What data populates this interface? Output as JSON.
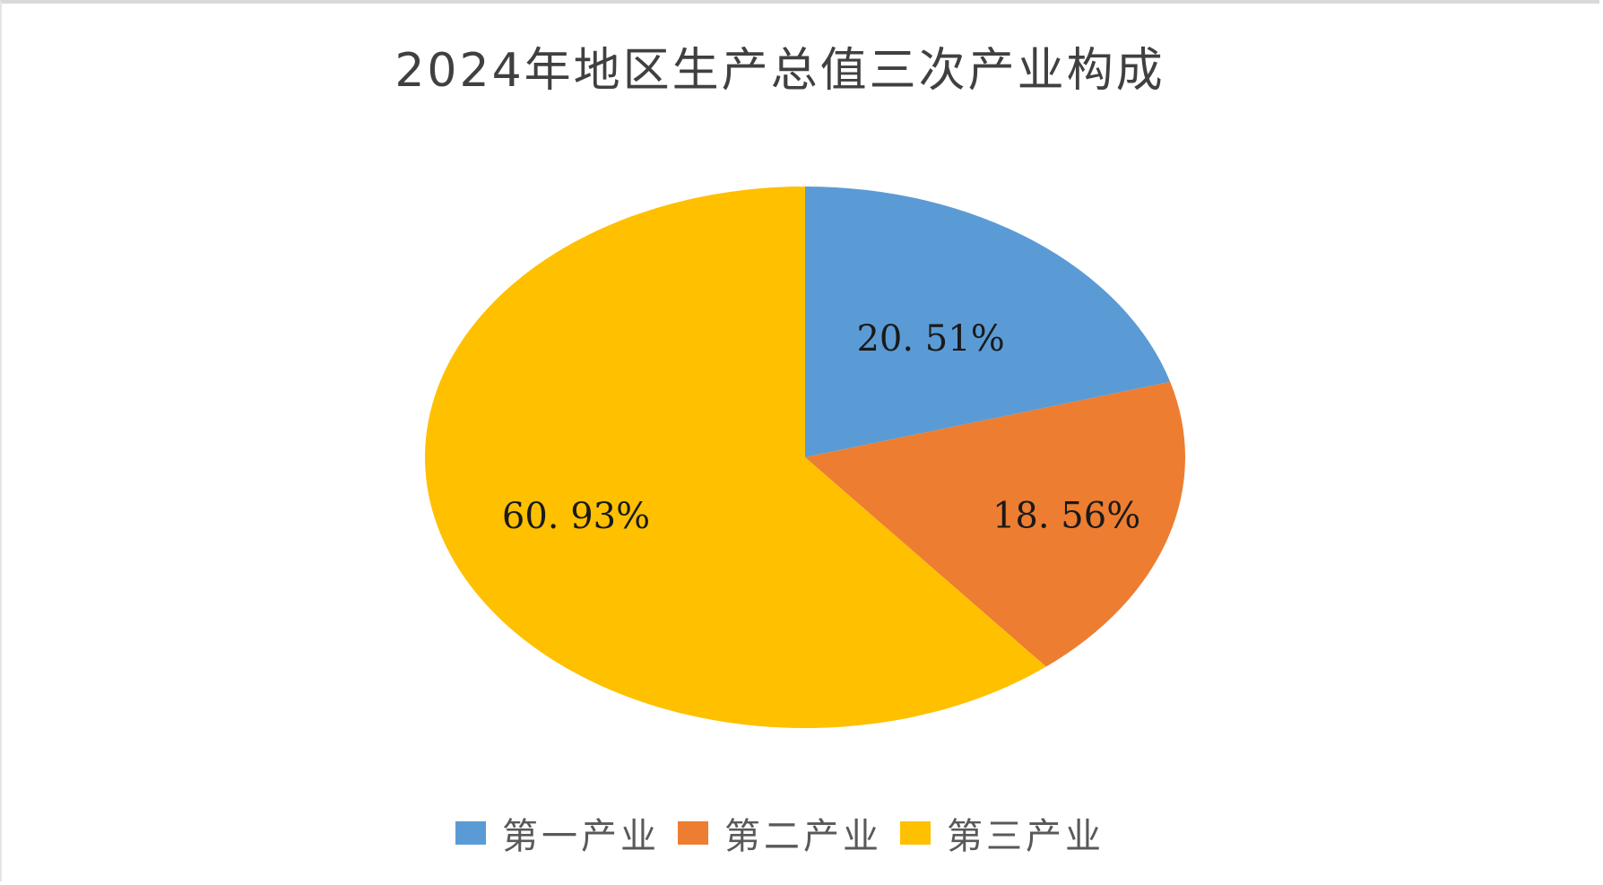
{
  "chart_data": {
    "type": "pie",
    "title": "2024年地区生产总值三次产业构成",
    "slices": [
      {
        "name": "第一产业",
        "value": 20.51,
        "label": "20. 51%",
        "color": "#5B9BD5"
      },
      {
        "name": "第二产业",
        "value": 18.56,
        "label": "18. 56%",
        "color": "#ED7D31"
      },
      {
        "name": "第三产业",
        "value": 60.93,
        "label": "60. 93%",
        "color": "#FFC000"
      }
    ],
    "start_angle": "12 o'clock",
    "direction": "clockwise",
    "legend": "bottom"
  }
}
